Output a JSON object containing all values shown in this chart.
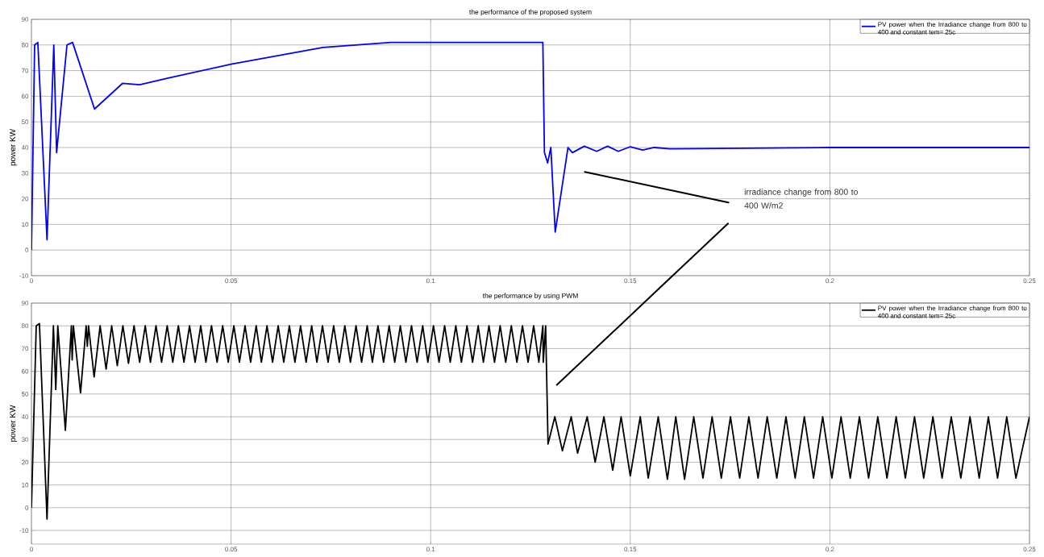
{
  "chart_data": [
    {
      "type": "line",
      "title": "the performance of the proposed system",
      "ylabel": "power KW",
      "xlim": [
        0,
        0.25
      ],
      "ylim": [
        -10,
        90
      ],
      "xticks": [
        0,
        0.05,
        0.1,
        0.15,
        0.2,
        0.25
      ],
      "yticks": [
        -10,
        0,
        10,
        20,
        30,
        40,
        50,
        60,
        70,
        80,
        90
      ],
      "grid": true,
      "legend": "top right",
      "annotations": [
        "irradiance change from 800 to 400 W/m2"
      ],
      "series": [
        {
          "name": "PV power when the Irradiance change from 800 to 400 and constant tem= 25c",
          "color": "#0000ff",
          "x": [
            0,
            0.0008,
            0.0016,
            0.0039,
            0.0056,
            0.0063,
            0.0089,
            0.0103,
            0.0158,
            0.0228,
            0.0271,
            0.034,
            0.05,
            0.073,
            0.09,
            0.1281,
            0.1285,
            0.1293,
            0.1301,
            0.1312,
            0.1344,
            0.1355,
            0.1385,
            0.1416,
            0.1443,
            0.147,
            0.15,
            0.1531,
            0.156,
            0.16,
            0.2,
            0.25
          ],
          "values": [
            0,
            80,
            81,
            4,
            80,
            38,
            80,
            81,
            55,
            65,
            64.5,
            67,
            72.5,
            79,
            81,
            81,
            38,
            34,
            40,
            7,
            40,
            38,
            40.5,
            38.5,
            40.5,
            38.5,
            40.3,
            39,
            40,
            39.5,
            40,
            40
          ]
        }
      ]
    },
    {
      "type": "line",
      "title": "the performance by using PWM",
      "ylabel": "power KW",
      "xlim": [
        0,
        0.25
      ],
      "ylim": [
        -16,
        90
      ],
      "xticks": [
        0,
        0.05,
        0.1,
        0.15,
        0.2,
        0.25
      ],
      "yticks": [
        -10,
        0,
        10,
        20,
        30,
        40,
        50,
        60,
        70,
        80,
        90
      ],
      "grid": true,
      "legend": "top right",
      "series": [
        {
          "name": "PV power when the Irradiance change from 800 to 400 and constant tem= 25c",
          "color": "#000000",
          "x": [
            0,
            0.0012,
            0.002,
            0.0039,
            0.0055,
            0.0061,
            0.0066,
            0.0085,
            0.01,
            0.0102,
            0.0105,
            0.0123,
            0.0137,
            0.014,
            0.0143,
            0.0157,
            0.0172,
            0.0187,
            0.0201,
            0.0215,
            0.0229,
            0.0243,
            0.0257,
            0.0271,
            0.0285,
            0.0298,
            0.0312,
            0.0326,
            0.034,
            0.0354,
            0.0368,
            0.0382,
            0.0396,
            0.041,
            0.0424,
            0.0437,
            0.0451,
            0.0465,
            0.0479,
            0.0493,
            0.0507,
            0.0521,
            0.0535,
            0.0549,
            0.0563,
            0.0576,
            0.059,
            0.0604,
            0.0618,
            0.0632,
            0.0646,
            0.066,
            0.0674,
            0.0688,
            0.0702,
            0.0715,
            0.0729,
            0.0743,
            0.0757,
            0.0771,
            0.0785,
            0.0799,
            0.0813,
            0.0827,
            0.0841,
            0.0854,
            0.0868,
            0.0882,
            0.0896,
            0.091,
            0.0924,
            0.0938,
            0.0952,
            0.0966,
            0.098,
            0.0993,
            0.1007,
            0.1021,
            0.1035,
            0.1049,
            0.1063,
            0.1077,
            0.1091,
            0.1105,
            0.1119,
            0.1132,
            0.1146,
            0.116,
            0.1174,
            0.1188,
            0.1202,
            0.1216,
            0.123,
            0.1244,
            0.1258,
            0.1271,
            0.1281,
            0.1282,
            0.1288,
            0.1294,
            0.1311,
            0.133,
            0.1352,
            0.1368,
            0.1392,
            0.1412,
            0.1434,
            0.1456,
            0.1477,
            0.15,
            0.1525,
            0.1545,
            0.157,
            0.1593,
            0.1614,
            0.1636,
            0.1659,
            0.1682,
            0.1705,
            0.1728,
            0.1751,
            0.1774,
            0.1797,
            0.182,
            0.1843,
            0.1867,
            0.189,
            0.1913,
            0.1936,
            0.1959,
            0.1982,
            0.2005,
            0.2028,
            0.2051,
            0.2074,
            0.2097,
            0.212,
            0.2143,
            0.2166,
            0.2189,
            0.2212,
            0.2235,
            0.2258,
            0.2281,
            0.2304,
            0.2328,
            0.2351,
            0.2374,
            0.2397,
            0.242,
            0.2443,
            0.2466,
            0.25
          ],
          "values": [
            0,
            80,
            81,
            -5,
            80,
            52,
            80,
            34,
            80,
            65,
            80,
            50.5,
            80,
            71,
            80,
            57.5,
            80,
            61,
            80,
            62.5,
            80,
            63.5,
            80,
            64,
            80,
            64,
            80,
            64,
            80,
            64,
            80,
            64,
            80,
            64,
            80,
            64,
            80,
            64,
            80,
            64,
            80,
            64,
            80,
            64,
            80,
            64,
            80,
            64,
            80,
            64,
            80,
            64,
            80,
            64,
            80,
            64,
            80,
            64,
            80,
            64,
            80,
            64,
            80,
            64,
            80,
            64,
            80,
            64,
            80,
            64,
            80,
            64,
            80,
            64,
            80,
            64,
            80,
            64,
            80,
            64,
            80,
            64,
            80,
            64,
            80,
            64,
            80,
            64,
            80,
            64,
            80,
            64,
            80,
            64,
            80,
            64,
            80,
            64,
            80,
            28,
            40,
            25,
            40,
            24,
            40,
            20,
            40,
            16.5,
            40,
            14,
            40,
            13,
            40,
            12.5,
            40,
            12.5,
            40,
            13,
            40,
            13,
            40,
            13,
            40,
            13,
            40,
            13,
            40,
            13,
            40,
            13,
            40,
            13,
            40,
            13,
            40,
            13,
            40,
            13,
            40,
            13,
            40,
            13,
            40,
            13,
            40,
            13,
            40,
            13,
            40,
            13,
            40,
            13,
            40
          ]
        }
      ]
    }
  ]
}
